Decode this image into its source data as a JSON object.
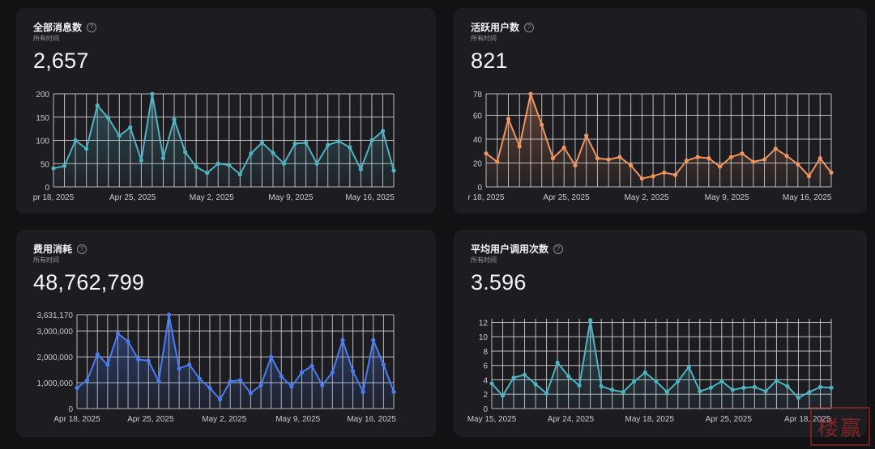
{
  "cards": [
    {
      "title": "全部消息数",
      "subtitle": "所有时间",
      "value": "2,657",
      "color": "#4fb3c2",
      "fill_top": "rgba(79,179,194,0.32)",
      "fill_bottom": "rgba(79,179,194,0.04)"
    },
    {
      "title": "活跃用户数",
      "subtitle": "所有时间",
      "value": "821",
      "color": "#f0955e",
      "fill_top": "rgba(240,149,94,0.32)",
      "fill_bottom": "rgba(240,149,94,0.04)"
    },
    {
      "title": "费用消耗",
      "subtitle": "所有时间",
      "value": "48,762,799",
      "color": "#4a7df0",
      "fill_top": "rgba(74,125,240,0.40)",
      "fill_bottom": "rgba(74,125,240,0.06)"
    },
    {
      "title": "平均用户调用次数",
      "subtitle": "所有时间",
      "value": "3.596",
      "color": "#4fb3c2",
      "fill_top": "rgba(79,179,194,0.32)",
      "fill_bottom": "rgba(79,179,194,0.04)"
    }
  ],
  "help_icon": "question-circle-icon",
  "watermark_text": "楼赢",
  "chart_data": [
    {
      "type": "area",
      "title": "全部消息数",
      "ylim": [
        0,
        200
      ],
      "y_ticks": [
        "200",
        "150",
        "100",
        "50",
        "0"
      ],
      "x_tick_labels": [
        "pr 18, 2025",
        "Apr 25, 2025",
        "May 2, 2025",
        "May 9, 2025",
        "May 16, 2025"
      ],
      "grid": true,
      "values": [
        40,
        45,
        100,
        82,
        175,
        148,
        110,
        128,
        57,
        200,
        62,
        145,
        75,
        43,
        30,
        50,
        47,
        27,
        72,
        95,
        73,
        50,
        93,
        95,
        50,
        90,
        98,
        85,
        38,
        100,
        120,
        35
      ]
    },
    {
      "type": "area",
      "title": "活跃用户数",
      "ylim": [
        0,
        78
      ],
      "y_ticks": [
        "78",
        "60",
        "40",
        "20",
        "0"
      ],
      "x_tick_labels": [
        "r 18, 2025",
        "Apr 25, 2025",
        "May 2, 2025",
        "May 9, 2025",
        "May 16, 2025"
      ],
      "grid": true,
      "values": [
        28,
        21,
        57,
        34,
        78,
        52,
        24,
        33,
        18,
        43,
        24,
        23,
        25,
        18,
        7,
        9,
        12,
        10,
        22,
        25,
        24,
        17,
        25,
        28,
        21,
        23,
        32,
        26,
        19,
        9,
        24,
        12
      ]
    },
    {
      "type": "area",
      "title": "费用消耗",
      "ylim": [
        0,
        3631170
      ],
      "y_ticks": [
        "3,631,170",
        "3,000,000",
        "2,000,000",
        "1,000,000",
        "0"
      ],
      "x_tick_labels": [
        "Apr 18, 2025",
        "Apr 25, 2025",
        "May 2, 2025",
        "May 9, 2025",
        "May 16, 2025"
      ],
      "grid": true,
      "values": [
        800000,
        1100000,
        2100000,
        1700000,
        2900000,
        2600000,
        1900000,
        1850000,
        1050000,
        3631170,
        1550000,
        1700000,
        1150000,
        800000,
        350000,
        1050000,
        1100000,
        600000,
        900000,
        2000000,
        1250000,
        850000,
        1400000,
        1650000,
        900000,
        1400000,
        2650000,
        1450000,
        650000,
        2650000,
        1700000,
        650000
      ]
    },
    {
      "type": "area",
      "title": "平均用户调用次数",
      "ylim": [
        0,
        12.5
      ],
      "y_ticks": [
        "12",
        "10",
        "8",
        "6",
        "4",
        "2",
        "0"
      ],
      "x_tick_labels": [
        "May 15, 2025",
        "Apr 24, 2025",
        "May 18, 2025",
        "Apr 25, 2025",
        "Apr 18, 2025"
      ],
      "grid": true,
      "values": [
        3.5,
        1.8,
        4.3,
        4.7,
        3.4,
        2.1,
        6.4,
        4.5,
        3.2,
        12.3,
        3.1,
        2.6,
        2.3,
        3.8,
        5.0,
        3.8,
        2.3,
        3.8,
        5.8,
        2.4,
        2.9,
        3.8,
        2.6,
        2.9,
        3.0,
        2.4,
        3.9,
        3.1,
        1.5,
        2.3,
        3.0,
        2.9
      ]
    }
  ]
}
